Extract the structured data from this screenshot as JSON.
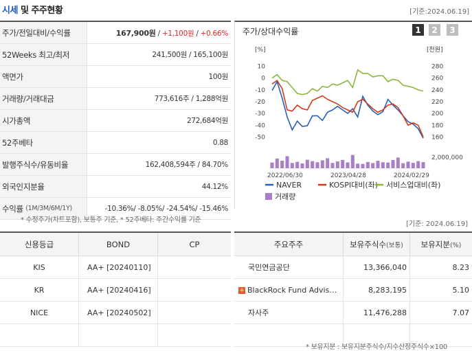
{
  "header": {
    "title_blue": "시세",
    "title_rest": " 및 주주현황",
    "asof": "[기준:2024.06.19]"
  },
  "quote": {
    "rows": [
      {
        "label": "주가/전일대비/수익률"
      },
      {
        "label": "52Weeks 최고/최저",
        "value": "241,500원 / 165,100원"
      },
      {
        "label": "액면가",
        "value": "100원"
      },
      {
        "label": "거래량/거래대금",
        "value": "773,616주 / 1,288억원"
      },
      {
        "label": "시가총액",
        "value": "272,684억원"
      },
      {
        "label": "52주베타",
        "value": "0.88"
      },
      {
        "label": "발행주식수/유동비율",
        "value": "162,408,594주 / 84.70%"
      },
      {
        "label": "외국인지분율",
        "value": "44.12%"
      },
      {
        "label": "수익률",
        "label_sub": "(1M/3M/6M/1Y)"
      }
    ],
    "price": "167,900원",
    "change": "+1,100원",
    "change_pct": "+0.66%",
    "returns": [
      "-10.36%",
      "-8.05%",
      "-24.54%",
      "-15.46%"
    ],
    "footnote": "* 수정주가(차트포함), 보통주 기준, * 52주베타: 주간수익률 기준"
  },
  "chart_panel": {
    "title": "주가/상대수익률",
    "pages": [
      "1",
      "2",
      "3"
    ],
    "asof": "[기준: 2024.06.19]"
  },
  "chart_data": {
    "type": "line",
    "left_axis_unit": "[%]",
    "right_axis_unit": "[천원]",
    "left_ticks": [
      "10",
      "0",
      "-10",
      "-20",
      "-30",
      "-40",
      "-50"
    ],
    "right_ticks": [
      "280",
      "260",
      "240",
      "220",
      "200",
      "180",
      "160"
    ],
    "volume_tick": "2,000,000",
    "x_ticks": [
      "2022/06/30",
      "2023/04/28",
      "2024/02/29"
    ],
    "ylim_left": [
      -55,
      15
    ],
    "ylim_right": [
      150,
      290
    ],
    "series": [
      {
        "name": "NAVER",
        "axis": "right",
        "color": "#2a5fb8",
        "values": [
          239,
          254,
          226,
          194,
          172,
          187,
          178,
          179,
          196,
          196,
          188,
          202,
          206,
          212,
          206,
          200,
          208,
          194,
          229,
          214,
          204,
          198,
          203,
          224,
          214,
          206,
          196,
          186,
          182,
          174,
          158
        ]
      },
      {
        "name": "KOSPI대비(좌)",
        "axis": "left",
        "color": "#cc3a1b",
        "values": [
          -5,
          -2,
          -9,
          -27,
          -28,
          -23,
          -26,
          -27,
          -19,
          -17,
          -15,
          -18,
          -20,
          -22,
          -25,
          -27,
          -29,
          -20,
          -18,
          -22,
          -26,
          -29,
          -27,
          -23,
          -22,
          -25,
          -32,
          -40,
          -38,
          -40,
          -50
        ]
      },
      {
        "name": "서비스업대비(좌)",
        "axis": "left",
        "color": "#8cb63c",
        "values": [
          0,
          3,
          -2,
          -3,
          -8,
          -13,
          -14,
          -13,
          -9,
          -11,
          -7,
          -8,
          -5,
          -6,
          -4,
          -2,
          -8,
          7,
          4,
          4,
          1,
          2,
          2,
          -3,
          -1,
          -2,
          -6,
          -7,
          -8,
          -10,
          -11
        ]
      },
      {
        "name": "거래량",
        "axis": "volume",
        "color": "#a87fc8",
        "values": [
          0.42,
          0.71,
          0.55,
          0.88,
          0.39,
          0.47,
          0.35,
          0.62,
          0.52,
          0.44,
          0.58,
          0.73,
          0.39,
          0.5,
          0.61,
          0.43,
          0.97,
          0.34,
          0.32,
          0.46,
          0.38,
          0.55,
          0.44,
          0.42,
          0.6,
          0.78,
          0.37,
          0.48,
          0.4,
          0.52,
          0.45
        ]
      }
    ]
  },
  "ratings": {
    "headers": [
      "신용등급",
      "BOND",
      "CP"
    ],
    "rows": [
      {
        "agency": "KIS",
        "bond": "AA+ [20240110]",
        "cp": ""
      },
      {
        "agency": "KR",
        "bond": "AA+ [20240416]",
        "cp": ""
      },
      {
        "agency": "NICE",
        "bond": "AA+ [20240502]",
        "cp": ""
      },
      {
        "agency": "",
        "bond": "",
        "cp": ""
      }
    ]
  },
  "holders": {
    "headers": [
      "주요주주",
      "보유주식수",
      "(보통)",
      "보유지분",
      "(%)"
    ],
    "rows": [
      {
        "name": "국민연금공단",
        "shares": "13,366,040",
        "pct": "8.23",
        "expand": ""
      },
      {
        "name": "BlackRock Fund Advis…",
        "shares": "8,283,195",
        "pct": "5.10",
        "expand": "+"
      },
      {
        "name": "자사주",
        "shares": "11,476,288",
        "pct": "7.07",
        "expand": ""
      },
      {
        "name": "",
        "shares": "",
        "pct": "",
        "expand": ""
      }
    ],
    "footnote": "* 보유지분 : 보유지분주식수/지수산정주식수×100"
  }
}
